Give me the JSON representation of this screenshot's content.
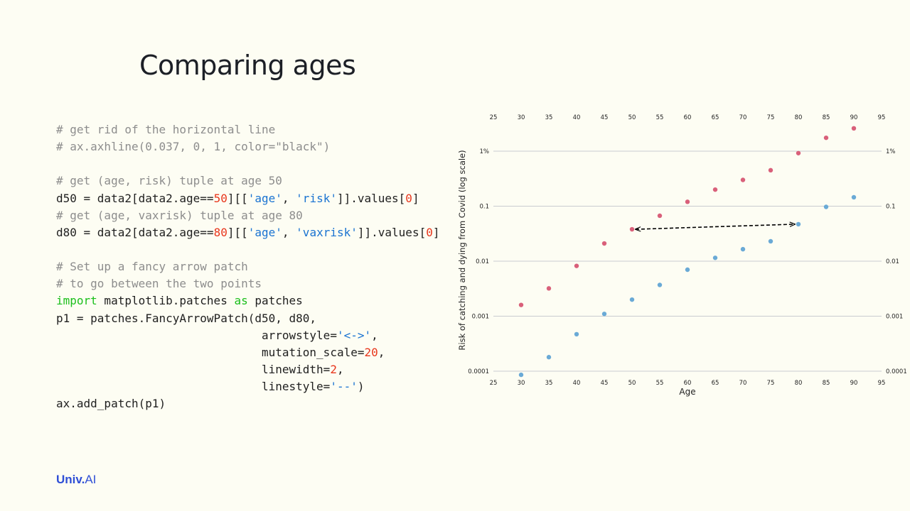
{
  "slide": {
    "title": "Comparing ages",
    "logo_main": "Univ.",
    "logo_suffix": "AI"
  },
  "code_lines": [
    [
      {
        "t": "# get rid of the horizontal line",
        "c": "com"
      }
    ],
    [
      {
        "t": "# ax.axhline(0.037, 0, 1, color=\"black\")",
        "c": "com"
      }
    ],
    [],
    [
      {
        "t": "# get (age, risk) tuple at age 50",
        "c": "com"
      }
    ],
    [
      {
        "t": "d50 = data2[data2.age=="
      },
      {
        "t": "50",
        "c": "num"
      },
      {
        "t": "][["
      },
      {
        "t": "'age'",
        "c": "str"
      },
      {
        "t": ", "
      },
      {
        "t": "'risk'",
        "c": "str"
      },
      {
        "t": "]].values["
      },
      {
        "t": "0",
        "c": "num"
      },
      {
        "t": "]"
      }
    ],
    [
      {
        "t": "# get (age, vaxrisk) tuple at age 80",
        "c": "com"
      }
    ],
    [
      {
        "t": "d80 = data2[data2.age=="
      },
      {
        "t": "80",
        "c": "num"
      },
      {
        "t": "][["
      },
      {
        "t": "'age'",
        "c": "str"
      },
      {
        "t": ", "
      },
      {
        "t": "'vaxrisk'",
        "c": "str"
      },
      {
        "t": "]].values["
      },
      {
        "t": "0",
        "c": "num"
      },
      {
        "t": "]"
      }
    ],
    [],
    [
      {
        "t": "# Set up a fancy arrow patch",
        "c": "com"
      }
    ],
    [
      {
        "t": "# to go between the two points",
        "c": "com"
      }
    ],
    [
      {
        "t": "import",
        "c": "kw"
      },
      {
        "t": " matplotlib.patches "
      },
      {
        "t": "as",
        "c": "kw"
      },
      {
        "t": " patches"
      }
    ],
    [
      {
        "t": "p1 = patches.FancyArrowPatch(d50, d80,"
      }
    ],
    [
      {
        "t": "                              arrowstyle="
      },
      {
        "t": "'<->'",
        "c": "str"
      },
      {
        "t": ","
      }
    ],
    [
      {
        "t": "                              mutation_scale="
      },
      {
        "t": "20",
        "c": "num"
      },
      {
        "t": ","
      }
    ],
    [
      {
        "t": "                              linewidth="
      },
      {
        "t": "2",
        "c": "num"
      },
      {
        "t": ","
      }
    ],
    [
      {
        "t": "                              linestyle="
      },
      {
        "t": "'--'",
        "c": "str"
      },
      {
        "t": ")"
      }
    ],
    [
      {
        "t": "ax.add_patch(p1)"
      }
    ]
  ],
  "chart_data": {
    "type": "scatter",
    "title": "",
    "xlabel": "Age",
    "ylabel": "Risk of catching and dying from Covid (log scale)",
    "x_scale": "linear",
    "y_scale": "log",
    "xlim": [
      25,
      95
    ],
    "ylim": [
      0.0001,
      3
    ],
    "x_ticks": [
      25,
      30,
      35,
      40,
      45,
      50,
      55,
      60,
      65,
      70,
      75,
      80,
      85,
      90,
      95
    ],
    "y_ticks": [
      {
        "value": 0.0001,
        "label": "0.0001"
      },
      {
        "value": 0.001,
        "label": "0.001"
      },
      {
        "value": 0.01,
        "label": "0.01"
      },
      {
        "value": 0.1,
        "label": "0.1"
      },
      {
        "value": 1,
        "label": "1%"
      }
    ],
    "grid": "horizontal",
    "ticks_top": true,
    "ticks_right": true,
    "series": [
      {
        "color": "#d9607a",
        "x": [
          30,
          35,
          40,
          45,
          50,
          55,
          60,
          65,
          70,
          75,
          80,
          85,
          90
        ],
        "y": [
          0.0016,
          0.0032,
          0.0082,
          0.021,
          0.038,
          0.067,
          0.12,
          0.2,
          0.3,
          0.45,
          0.92,
          1.75,
          2.6
        ]
      },
      {
        "color": "#6aaad6",
        "x": [
          30,
          35,
          40,
          45,
          50,
          55,
          60,
          65,
          70,
          75,
          80,
          85,
          90
        ],
        "y": [
          8.6e-05,
          0.00018,
          0.00047,
          0.0011,
          0.002,
          0.0037,
          0.007,
          0.0115,
          0.0165,
          0.023,
          0.047,
          0.097,
          0.145
        ]
      }
    ],
    "annotations": [
      {
        "type": "double-arrow",
        "style": "dashed",
        "from": [
          50,
          0.038
        ],
        "to": [
          80,
          0.047
        ],
        "color": "#000000"
      }
    ]
  }
}
